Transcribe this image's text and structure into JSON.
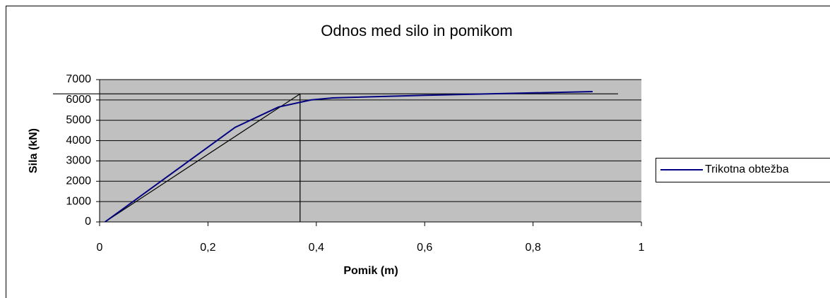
{
  "chart_data": {
    "type": "line",
    "title": "Odnos med silo in pomikom",
    "x_label": "Pomik (m)",
    "y_label": "Sila (kN)",
    "x": [
      0.01,
      0.25,
      0.33,
      0.39,
      0.43,
      0.6,
      0.91
    ],
    "series": [
      {
        "name": "Trikotna obtežba",
        "color": "#000080",
        "values": [
          0,
          4650,
          5650,
          6000,
          6100,
          6230,
          6410
        ]
      }
    ],
    "reference_lines": [
      {
        "color": "#000000",
        "x": [
          0.01,
          0.37
        ],
        "values": [
          0,
          6300
        ]
      },
      {
        "color": "#000000",
        "x": [
          0.37,
          0.37
        ],
        "values": [
          0,
          6300
        ]
      },
      {
        "color": "#000000",
        "x": [
          -0.086,
          0.957
        ],
        "values": [
          6300,
          6300
        ]
      }
    ],
    "xlim": [
      0,
      1
    ],
    "ylim": [
      0,
      7000
    ],
    "xticks": [
      0,
      {
        "value": 0.2,
        "label": "0,2"
      },
      {
        "value": 0.4,
        "label": "0,4"
      },
      {
        "value": 0.6,
        "label": "0,6"
      },
      {
        "value": 0.8,
        "label": "0,8"
      },
      1
    ],
    "yticks": [
      0,
      1000,
      2000,
      3000,
      4000,
      5000,
      6000,
      7000
    ],
    "grid": true,
    "plot_background": "#c0c0c0",
    "legend": "right"
  }
}
